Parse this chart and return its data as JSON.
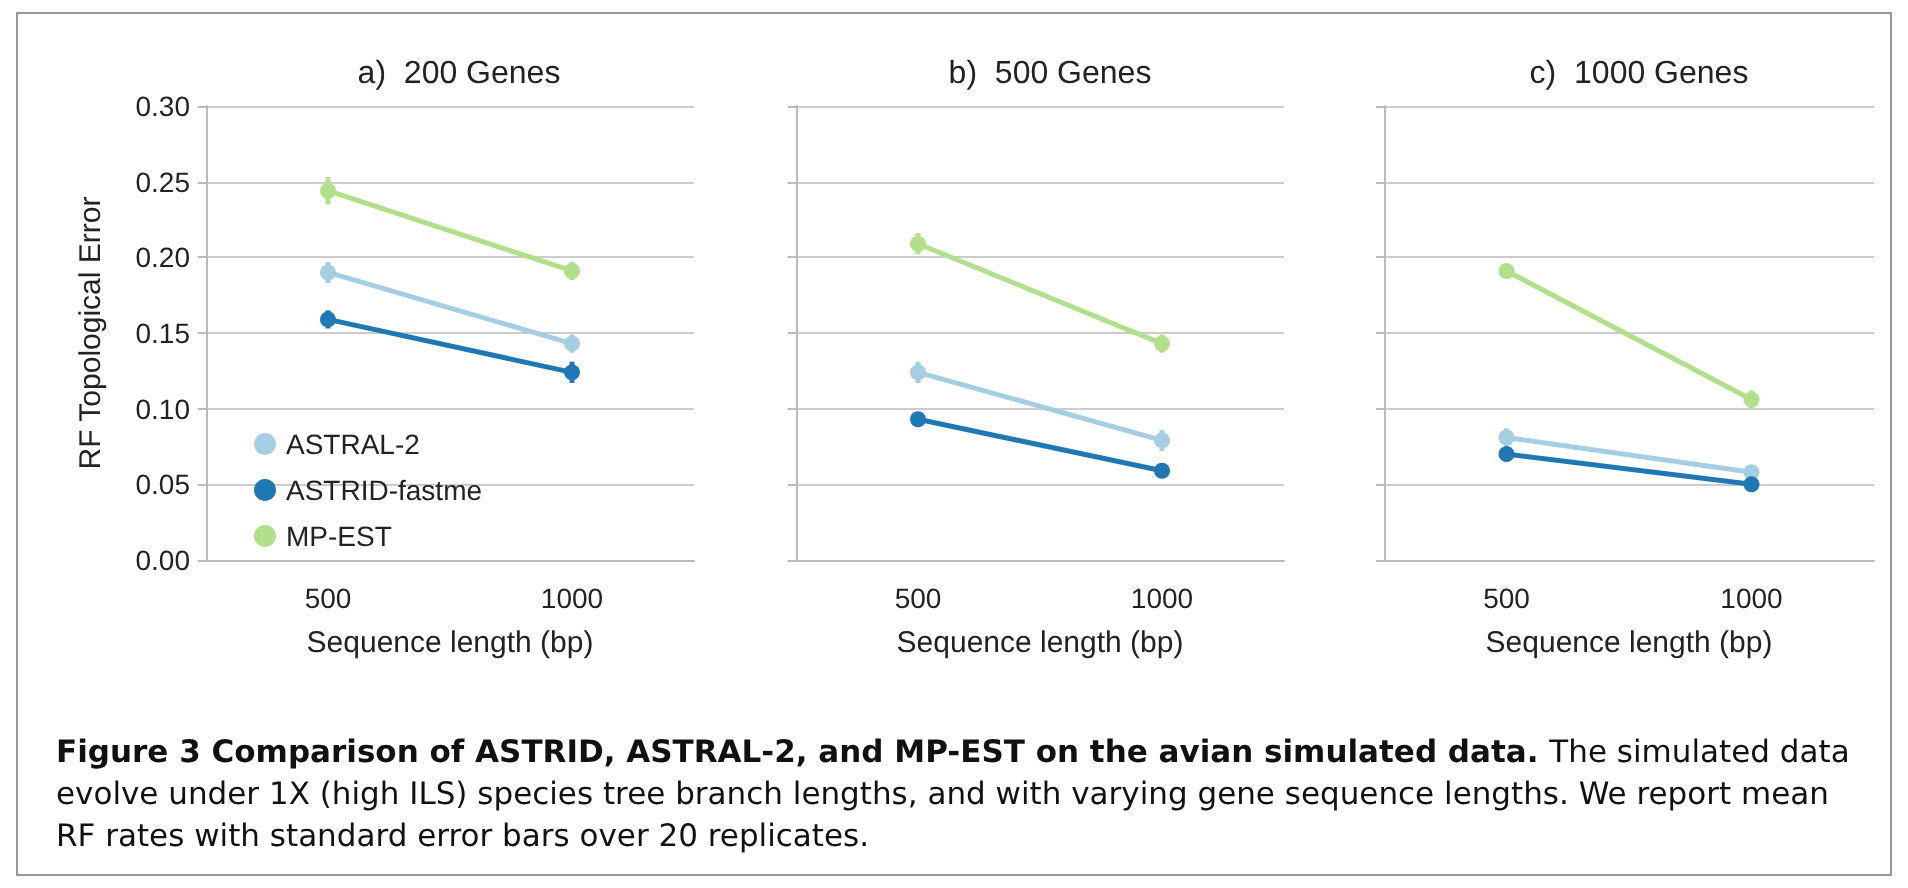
{
  "chart_data": [
    {
      "type": "line",
      "title": "a)  200 Genes",
      "xlabel": "Sequence length (bp)",
      "ylabel": "RF Topological Error",
      "categories": [
        "500",
        "1000"
      ],
      "ylim": [
        0,
        0.3
      ],
      "yticks": [
        {
          "value": 0,
          "label": "0.00"
        },
        {
          "value": 0.05,
          "label": "0.05"
        },
        {
          "value": 0.1,
          "label": "0.10"
        },
        {
          "value": 0.15,
          "label": "0.15"
        },
        {
          "value": 0.2,
          "label": "0.20"
        },
        {
          "value": 0.25,
          "label": "0.25"
        },
        {
          "value": 0.3,
          "label": "0.30"
        }
      ],
      "grid": "y",
      "legend": "bottom left",
      "marker": "circle",
      "line_style": "solid",
      "series": [
        {
          "name": "ASTRAL-2",
          "color": "#a6cee3",
          "values": [
            0.19,
            0.143
          ],
          "errors": [
            0.007,
            0.006
          ]
        },
        {
          "name": "ASTRID-fastme",
          "color": "#1f78b4",
          "values": [
            0.159,
            0.124
          ],
          "errors": [
            0.006,
            0.007
          ]
        },
        {
          "name": "MP-EST",
          "color": "#b2df8a",
          "values": [
            0.244,
            0.191
          ],
          "errors": [
            0.009,
            0.006
          ]
        }
      ],
      "annotations": [
        "Figure 3 Comparison of ASTRID, ASTRAL-2, and MP-EST on the avian simulated data.",
        "The simulated data evolve under 1X (high ILS) species tree branch lengths, and with varying gene sequence lengths. We report mean RF rates with standard error bars over 20 replicates."
      ]
    },
    {
      "type": "line",
      "title": "b)  500 Genes",
      "xlabel": "Sequence length (bp)",
      "categories": [
        "500",
        "1000"
      ],
      "ylim": [
        0,
        0.3
      ],
      "yticks": [
        0,
        0.05,
        0.1,
        0.15,
        0.2,
        0.25,
        0.3
      ],
      "tick_labels": "x",
      "grid": "y",
      "marker": "circle",
      "line_style": "solid",
      "series": [
        {
          "color": "#a6cee3",
          "values": [
            0.124,
            0.079
          ],
          "errors": [
            0.007,
            0.007
          ]
        },
        {
          "color": "#1f78b4",
          "values": [
            0.093,
            0.059
          ],
          "errors": [
            0.004,
            0.003
          ]
        },
        {
          "color": "#b2df8a",
          "values": [
            0.209,
            0.143
          ],
          "errors": [
            0.007,
            0.006
          ]
        }
      ]
    },
    {
      "type": "line",
      "title": "c)  1000 Genes",
      "xlabel": "Sequence length (bp)",
      "categories": [
        "500",
        "1000"
      ],
      "ylim": [
        0,
        0.3
      ],
      "yticks": [
        0,
        0.05,
        0.1,
        0.15,
        0.2,
        0.25,
        0.3
      ],
      "tick_labels": "x",
      "grid": "y",
      "marker": "circle",
      "line_style": "solid",
      "series": [
        {
          "color": "#a6cee3",
          "values": [
            0.081,
            0.058
          ],
          "errors": [
            0.006,
            0.004
          ]
        },
        {
          "color": "#1f78b4",
          "values": [
            0.07,
            0.05
          ],
          "errors": [
            0.004,
            0.004
          ]
        },
        {
          "color": "#b2df8a",
          "values": [
            0.191,
            0.106
          ],
          "errors": [
            0.004,
            0.006
          ]
        }
      ]
    }
  ]
}
